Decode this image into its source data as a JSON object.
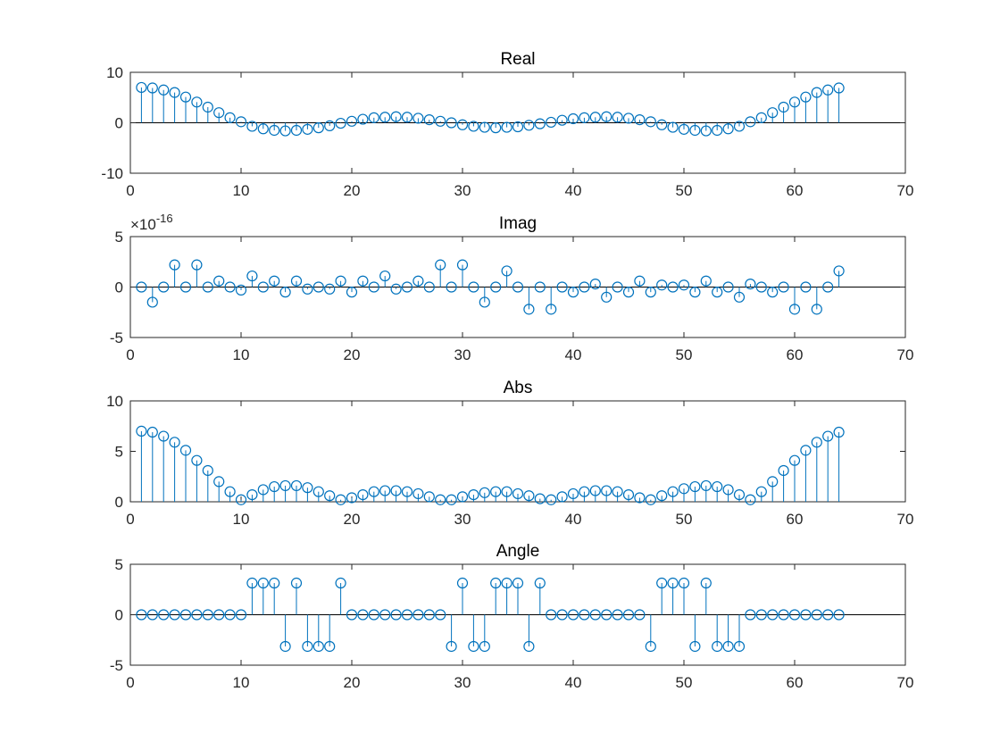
{
  "figure": {
    "background": "#ffffff",
    "series_color": "#0072BD"
  },
  "chart_data": [
    {
      "type": "stem",
      "title": "Real",
      "xlim": [
        0,
        70
      ],
      "ylim": [
        -10,
        10
      ],
      "xticks": [
        0,
        10,
        20,
        30,
        40,
        50,
        60,
        70
      ],
      "yticks": [
        -10,
        0,
        10
      ],
      "exponent_label": "",
      "series": [
        {
          "x": [
            1,
            2,
            3,
            4,
            5,
            6,
            7,
            8,
            9,
            10,
            11,
            12,
            13,
            14,
            15,
            16,
            17,
            18,
            19,
            20,
            21,
            22,
            23,
            24,
            25,
            26,
            27,
            28,
            29,
            30,
            31,
            32,
            33,
            34,
            35,
            36,
            37,
            38,
            39,
            40,
            41,
            42,
            43,
            44,
            45,
            46,
            47,
            48,
            49,
            50,
            51,
            52,
            53,
            54,
            55,
            56,
            57,
            58,
            59,
            60,
            61,
            62,
            63,
            64
          ],
          "y": [
            7.0,
            6.9,
            6.5,
            6.0,
            5.1,
            4.1,
            3.1,
            2.0,
            1.0,
            0.2,
            -0.7,
            -1.2,
            -1.5,
            -1.6,
            -1.5,
            -1.3,
            -1.0,
            -0.6,
            -0.1,
            0.3,
            0.7,
            1.0,
            1.1,
            1.2,
            1.1,
            0.9,
            0.6,
            0.3,
            0.0,
            -0.4,
            -0.7,
            -0.9,
            -1.0,
            -0.9,
            -0.8,
            -0.5,
            -0.2,
            0.1,
            0.5,
            0.8,
            1.0,
            1.1,
            1.2,
            1.1,
            0.9,
            0.6,
            0.2,
            -0.4,
            -0.9,
            -1.3,
            -1.5,
            -1.6,
            -1.5,
            -1.2,
            -0.7,
            0.2,
            1.0,
            2.0,
            3.1,
            4.1,
            5.1,
            6.0,
            6.5,
            6.9
          ]
        }
      ]
    },
    {
      "type": "stem",
      "title": "Imag",
      "xlim": [
        0,
        70
      ],
      "ylim": [
        -5,
        5
      ],
      "xticks": [
        0,
        10,
        20,
        30,
        40,
        50,
        60,
        70
      ],
      "yticks": [
        -5,
        0,
        5
      ],
      "exponent_label": "×10",
      "exponent_power": "-16",
      "series": [
        {
          "x": [
            1,
            2,
            3,
            4,
            5,
            6,
            7,
            8,
            9,
            10,
            11,
            12,
            13,
            14,
            15,
            16,
            17,
            18,
            19,
            20,
            21,
            22,
            23,
            24,
            25,
            26,
            27,
            28,
            29,
            30,
            31,
            32,
            33,
            34,
            35,
            36,
            37,
            38,
            39,
            40,
            41,
            42,
            43,
            44,
            45,
            46,
            47,
            48,
            49,
            50,
            51,
            52,
            53,
            54,
            55,
            56,
            57,
            58,
            59,
            60,
            61,
            62,
            63,
            64
          ],
          "y": [
            0.0,
            -1.5,
            0.0,
            2.2,
            0.0,
            2.2,
            0.0,
            0.6,
            0.0,
            -0.3,
            1.1,
            0.0,
            0.6,
            -0.5,
            0.6,
            -0.2,
            0.0,
            -0.2,
            0.6,
            -0.5,
            0.6,
            0.0,
            1.1,
            -0.2,
            0.0,
            0.6,
            0.0,
            2.2,
            0.0,
            2.2,
            0.0,
            -1.5,
            0.0,
            1.6,
            0.0,
            -2.2,
            0.0,
            -2.2,
            0.0,
            -0.5,
            0.0,
            0.3,
            -1.0,
            0.0,
            -0.5,
            0.6,
            -0.5,
            0.2,
            0.0,
            0.2,
            -0.5,
            0.6,
            -0.5,
            0.0,
            -1.0,
            0.3,
            0.0,
            -0.5,
            0.0,
            -2.2,
            0.0,
            -2.2,
            0.0,
            1.6
          ]
        }
      ]
    },
    {
      "type": "stem",
      "title": "Abs",
      "xlim": [
        0,
        70
      ],
      "ylim": [
        0,
        10
      ],
      "xticks": [
        0,
        10,
        20,
        30,
        40,
        50,
        60,
        70
      ],
      "yticks": [
        0,
        5,
        10
      ],
      "exponent_label": "",
      "series": [
        {
          "x": [
            1,
            2,
            3,
            4,
            5,
            6,
            7,
            8,
            9,
            10,
            11,
            12,
            13,
            14,
            15,
            16,
            17,
            18,
            19,
            20,
            21,
            22,
            23,
            24,
            25,
            26,
            27,
            28,
            29,
            30,
            31,
            32,
            33,
            34,
            35,
            36,
            37,
            38,
            39,
            40,
            41,
            42,
            43,
            44,
            45,
            46,
            47,
            48,
            49,
            50,
            51,
            52,
            53,
            54,
            55,
            56,
            57,
            58,
            59,
            60,
            61,
            62,
            63,
            64
          ],
          "y": [
            7.0,
            6.9,
            6.5,
            5.9,
            5.1,
            4.1,
            3.1,
            2.0,
            1.0,
            0.2,
            0.7,
            1.2,
            1.5,
            1.6,
            1.6,
            1.4,
            1.0,
            0.6,
            0.2,
            0.4,
            0.7,
            1.0,
            1.1,
            1.1,
            1.0,
            0.8,
            0.5,
            0.2,
            0.2,
            0.5,
            0.7,
            0.9,
            1.0,
            1.0,
            0.8,
            0.6,
            0.3,
            0.2,
            0.5,
            0.8,
            1.0,
            1.1,
            1.1,
            1.0,
            0.7,
            0.4,
            0.2,
            0.6,
            1.0,
            1.3,
            1.5,
            1.6,
            1.5,
            1.2,
            0.7,
            0.2,
            1.0,
            2.0,
            3.1,
            4.1,
            5.1,
            5.9,
            6.5,
            6.9
          ]
        }
      ]
    },
    {
      "type": "stem",
      "title": "Angle",
      "xlim": [
        0,
        70
      ],
      "ylim": [
        -5,
        5
      ],
      "xticks": [
        0,
        10,
        20,
        30,
        40,
        50,
        60,
        70
      ],
      "yticks": [
        -5,
        0,
        5
      ],
      "exponent_label": "",
      "series": [
        {
          "x": [
            1,
            2,
            3,
            4,
            5,
            6,
            7,
            8,
            9,
            10,
            11,
            12,
            13,
            14,
            15,
            16,
            17,
            18,
            19,
            20,
            21,
            22,
            23,
            24,
            25,
            26,
            27,
            28,
            29,
            30,
            31,
            32,
            33,
            34,
            35,
            36,
            37,
            38,
            39,
            40,
            41,
            42,
            43,
            44,
            45,
            46,
            47,
            48,
            49,
            50,
            51,
            52,
            53,
            54,
            55,
            56,
            57,
            58,
            59,
            60,
            61,
            62,
            63,
            64
          ],
          "y": [
            0,
            0,
            0,
            0,
            0,
            0,
            0,
            0,
            0,
            0,
            3.14,
            3.14,
            3.14,
            -3.14,
            3.14,
            -3.14,
            -3.14,
            -3.14,
            3.14,
            0,
            0,
            0,
            0,
            0,
            0,
            0,
            0,
            0,
            -3.14,
            3.14,
            -3.14,
            -3.14,
            3.14,
            3.14,
            3.14,
            -3.14,
            3.14,
            0,
            0,
            0,
            0,
            0,
            0,
            0,
            0,
            0,
            -3.14,
            3.14,
            3.14,
            3.14,
            -3.14,
            3.14,
            -3.14,
            -3.14,
            -3.14,
            0,
            0,
            0,
            0,
            0,
            0,
            0,
            0,
            0
          ]
        }
      ]
    }
  ]
}
